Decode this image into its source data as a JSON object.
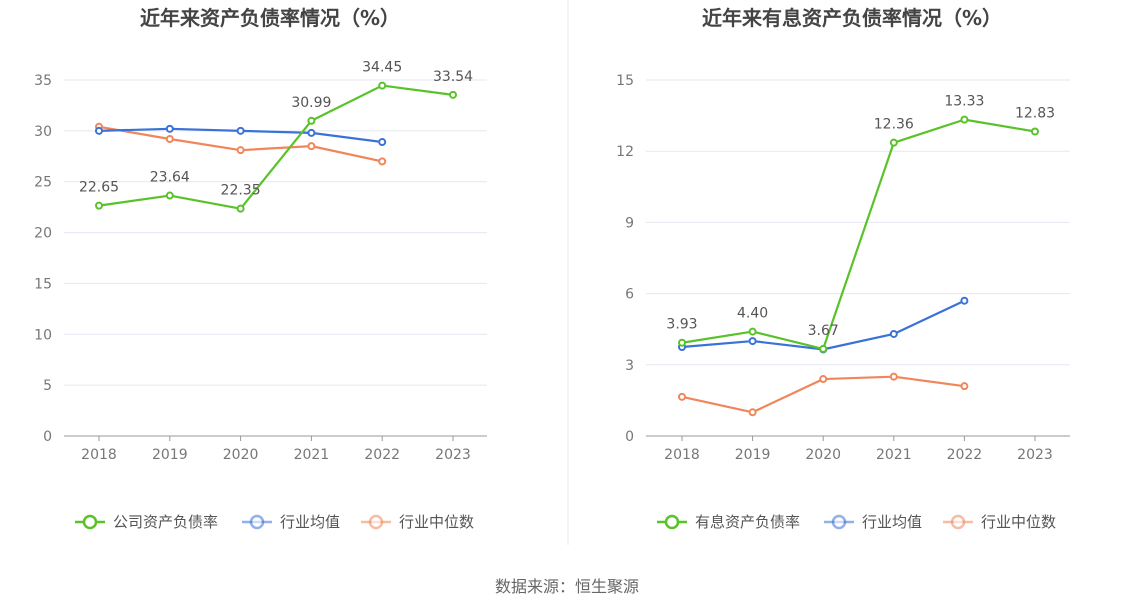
{
  "source": "数据来源：恒生聚源",
  "chart_data": [
    {
      "type": "line",
      "title": "近年来资产负债率情况（%）",
      "categories": [
        "2018",
        "2019",
        "2020",
        "2021",
        "2022",
        "2023"
      ],
      "ylim": [
        0,
        35
      ],
      "yticks": [
        "0",
        "5",
        "10",
        "15",
        "20",
        "25",
        "30",
        "35"
      ],
      "grid": true,
      "legend_position": "bottom",
      "series": [
        {
          "name": "公司资产负债率",
          "color": "#5ac229",
          "values": [
            22.65,
            23.64,
            22.35,
            30.99,
            34.45,
            33.54
          ],
          "labels": [
            "22.65",
            "23.64",
            "22.35",
            "30.99",
            "34.45",
            "33.54"
          ]
        },
        {
          "name": "行业均值",
          "color": "#3a72d8",
          "values": [
            30.0,
            30.2,
            30.0,
            29.8,
            28.9,
            null
          ]
        },
        {
          "name": "行业中位数",
          "color": "#f0865a",
          "values": [
            30.4,
            29.2,
            28.1,
            28.5,
            27.0,
            null
          ]
        }
      ]
    },
    {
      "type": "line",
      "title": "近年来有息资产负债率情况（%）",
      "categories": [
        "2018",
        "2019",
        "2020",
        "2021",
        "2022",
        "2023"
      ],
      "ylim": [
        0,
        15
      ],
      "yticks": [
        "0",
        "3",
        "6",
        "9",
        "12",
        "15"
      ],
      "grid": true,
      "legend_position": "bottom",
      "series": [
        {
          "name": "有息资产负债率",
          "color": "#5ac229",
          "values": [
            3.93,
            4.4,
            3.67,
            12.36,
            13.33,
            12.83
          ],
          "labels": [
            "3.93",
            "4.40",
            "3.67",
            "12.36",
            "13.33",
            "12.83"
          ]
        },
        {
          "name": "行业均值",
          "color": "#3a72d8",
          "values": [
            3.75,
            4.0,
            3.65,
            4.3,
            5.7,
            null
          ]
        },
        {
          "name": "行业中位数",
          "color": "#f0865a",
          "values": [
            1.65,
            1.0,
            2.4,
            2.5,
            2.1,
            null
          ]
        }
      ]
    }
  ]
}
